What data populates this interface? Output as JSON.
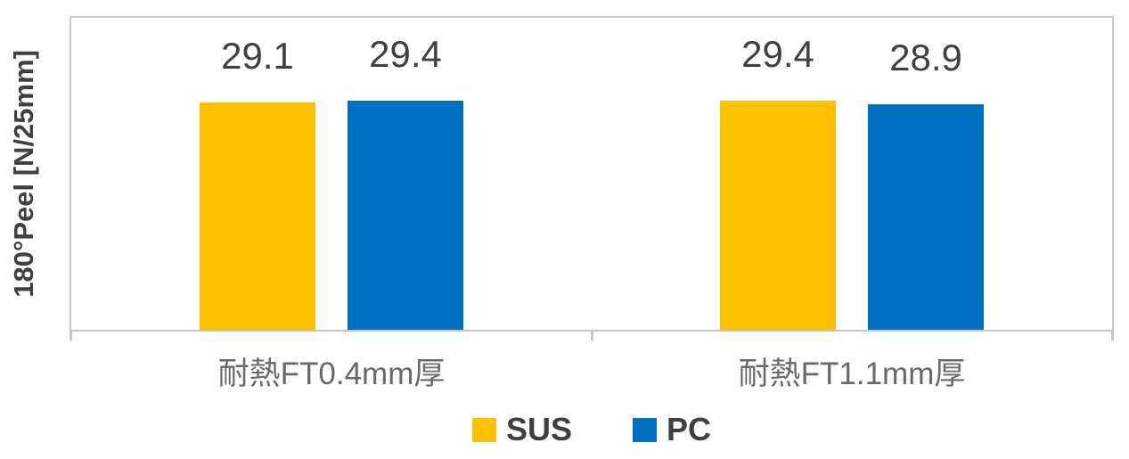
{
  "chart_data": {
    "type": "bar",
    "title": "",
    "xlabel": "",
    "ylabel": "180°Peel [N/25mm]",
    "ylim": [
      0,
      40
    ],
    "grid": false,
    "legend_position": "bottom",
    "categories": [
      "耐熱FT0.4mm厚",
      "耐熱FT1.1mm厚"
    ],
    "series": [
      {
        "name": "SUS",
        "color": "#FFC000",
        "values": [
          29.1,
          29.4
        ]
      },
      {
        "name": "PC",
        "color": "#0070C0",
        "values": [
          29.4,
          28.9
        ]
      }
    ],
    "data_labels": [
      "29.1",
      "29.4",
      "29.4",
      "28.9"
    ]
  },
  "colors": {
    "sus_bar": "#FFC000",
    "pc_bar": "#0070C0",
    "value_label_text": "#404040",
    "category_label_text": "#696969",
    "legend_text": "#3F3F3F",
    "axis_line": "#C6C6C6",
    "plot_border": "#CBCBCB",
    "background": "#FFFFFF"
  }
}
